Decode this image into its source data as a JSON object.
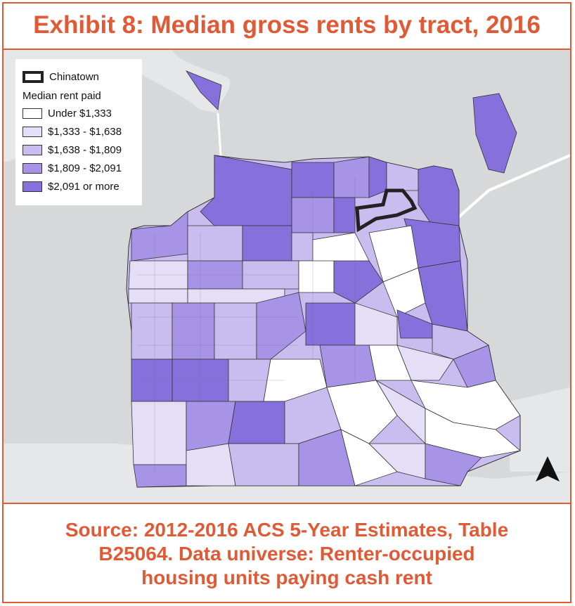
{
  "title": "Exhibit 8: Median gross rents by tract, 2016",
  "legend": {
    "outline_label": "Chinatown",
    "heading": "Median rent paid",
    "classes": [
      {
        "label": "Under $1,333",
        "color": "#ffffff"
      },
      {
        "label": "$1,333 - $1,638",
        "color": "#e4dff7"
      },
      {
        "label": "$1,638 - $1,809",
        "color": "#c9bdf0"
      },
      {
        "label": "$1,809 - $2,091",
        "color": "#a794e6"
      },
      {
        "label": "$2,091 or more",
        "color": "#8670dc"
      }
    ]
  },
  "source": {
    "line1": "Source: 2012-2016 ACS 5-Year Estimates, Table",
    "line2": "B25064. Data universe: Renter-occupied",
    "line3": "housing units paying cash rent"
  },
  "colors": {
    "accent": "#e05a35",
    "water": "#d7d8da",
    "land": "#e6e7e9",
    "outline": "#222222"
  },
  "icons": {
    "north_arrow": "north-arrow-icon"
  }
}
